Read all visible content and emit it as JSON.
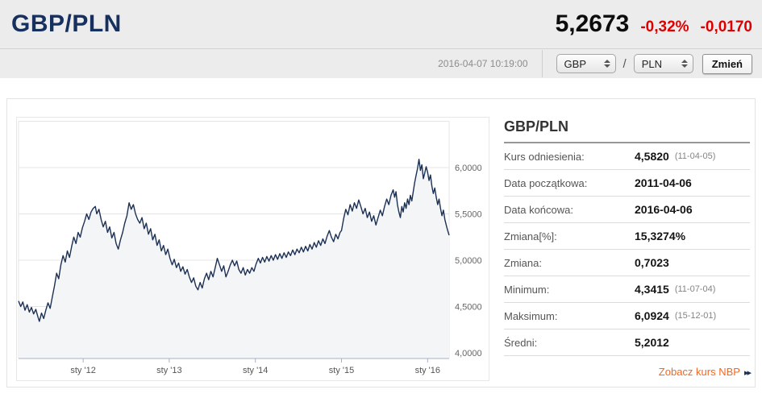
{
  "header": {
    "title": "GBP/PLN",
    "price": "5,2673",
    "change_percent": "-0,32%",
    "change_value": "-0,0170",
    "timestamp": "2016-04-07 10:19:00",
    "base_currency": "GBP",
    "quote_currency": "PLN",
    "separator": "/",
    "change_button": "Zmień"
  },
  "panel": {
    "title": "GBP/PLN",
    "rows": [
      {
        "label": "Kurs odniesienia:",
        "value": "4,5820",
        "note": "(11-04-05)"
      },
      {
        "label": "Data początkowa:",
        "value": "2011-04-06",
        "note": ""
      },
      {
        "label": "Data końcowa:",
        "value": "2016-04-06",
        "note": ""
      },
      {
        "label": "Zmiana[%]:",
        "value": "15,3274%",
        "note": ""
      },
      {
        "label": "Zmiana:",
        "value": "0,7023",
        "note": ""
      },
      {
        "label": "Minimum:",
        "value": "4,3415",
        "note": "(11-07-04)"
      },
      {
        "label": "Maksimum:",
        "value": "6,0924",
        "note": "(15-12-01)"
      },
      {
        "label": "Średni:",
        "value": "5,2012",
        "note": ""
      }
    ],
    "link": {
      "label": "Zobacz kurs NBP",
      "arrow": "▸▸"
    }
  },
  "colors": {
    "title_navy": "#16315f",
    "change_red": "#de0000",
    "link_orange": "#f26822",
    "chart_line": "#1c3054",
    "chart_area": "#f4f5f7",
    "chart_grid": "#e4e4e6",
    "chart_axis": "#a3b1cb",
    "band_gray": "#ececec"
  },
  "chart_data": {
    "type": "line",
    "title": "GBP/PLN 2011-04-06 — 2016-04-06",
    "xlabel": "",
    "ylabel": "",
    "x_unit": "months since 2011-04",
    "x_domain": [
      0,
      60
    ],
    "ylim": [
      3.93,
      6.54
    ],
    "grid_values": [
      6.5,
      6.0,
      5.5,
      5.0,
      4.5,
      4.0
    ],
    "y_ticks": [
      {
        "value": 6.0,
        "label": "6,0000"
      },
      {
        "value": 5.5,
        "label": "5,5000"
      },
      {
        "value": 5.0,
        "label": "5,0000"
      },
      {
        "value": 4.5,
        "label": "4,5000"
      },
      {
        "value": 4.0,
        "label": "4,0000"
      }
    ],
    "x_ticks": [
      {
        "value": 9,
        "label": "sty '12"
      },
      {
        "value": 21,
        "label": "sty '13"
      },
      {
        "value": 33,
        "label": "sty '14"
      },
      {
        "value": 45,
        "label": "sty '15"
      },
      {
        "value": 57,
        "label": "sty '16"
      }
    ],
    "legend": "none",
    "grid": "horizontal",
    "series": [
      {
        "name": "GBP/PLN",
        "points": [
          [
            0,
            4.56
          ],
          [
            0.3,
            4.5
          ],
          [
            0.6,
            4.55
          ],
          [
            0.9,
            4.46
          ],
          [
            1.2,
            4.52
          ],
          [
            1.5,
            4.44
          ],
          [
            1.8,
            4.49
          ],
          [
            2.1,
            4.42
          ],
          [
            2.4,
            4.47
          ],
          [
            2.7,
            4.39
          ],
          [
            2.9,
            4.34
          ],
          [
            3.2,
            4.43
          ],
          [
            3.5,
            4.37
          ],
          [
            3.8,
            4.46
          ],
          [
            4.1,
            4.54
          ],
          [
            4.4,
            4.48
          ],
          [
            4.7,
            4.6
          ],
          [
            5,
            4.72
          ],
          [
            5.3,
            4.86
          ],
          [
            5.6,
            4.8
          ],
          [
            5.9,
            4.95
          ],
          [
            6.2,
            5.05
          ],
          [
            6.5,
            4.98
          ],
          [
            6.8,
            5.1
          ],
          [
            7.1,
            5.03
          ],
          [
            7.4,
            5.15
          ],
          [
            7.7,
            5.25
          ],
          [
            8,
            5.18
          ],
          [
            8.3,
            5.3
          ],
          [
            8.6,
            5.25
          ],
          [
            8.9,
            5.35
          ],
          [
            9.2,
            5.42
          ],
          [
            9.5,
            5.5
          ],
          [
            9.8,
            5.44
          ],
          [
            10.1,
            5.52
          ],
          [
            10.4,
            5.56
          ],
          [
            10.7,
            5.58
          ],
          [
            10.9,
            5.5
          ],
          [
            11.2,
            5.55
          ],
          [
            11.5,
            5.44
          ],
          [
            11.8,
            5.36
          ],
          [
            12.1,
            5.42
          ],
          [
            12.4,
            5.3
          ],
          [
            12.7,
            5.36
          ],
          [
            13,
            5.24
          ],
          [
            13.3,
            5.3
          ],
          [
            13.6,
            5.18
          ],
          [
            13.9,
            5.12
          ],
          [
            14.2,
            5.22
          ],
          [
            14.5,
            5.3
          ],
          [
            14.8,
            5.4
          ],
          [
            15.1,
            5.48
          ],
          [
            15.4,
            5.62
          ],
          [
            15.7,
            5.55
          ],
          [
            16,
            5.6
          ],
          [
            16.3,
            5.5
          ],
          [
            16.6,
            5.44
          ],
          [
            16.9,
            5.4
          ],
          [
            17.2,
            5.46
          ],
          [
            17.5,
            5.34
          ],
          [
            17.8,
            5.4
          ],
          [
            18.1,
            5.28
          ],
          [
            18.4,
            5.34
          ],
          [
            18.7,
            5.22
          ],
          [
            19,
            5.28
          ],
          [
            19.3,
            5.16
          ],
          [
            19.6,
            5.22
          ],
          [
            19.9,
            5.1
          ],
          [
            20.2,
            5.16
          ],
          [
            20.5,
            5.06
          ],
          [
            20.8,
            5.12
          ],
          [
            21.1,
            5.02
          ],
          [
            21.4,
            4.95
          ],
          [
            21.7,
            5.01
          ],
          [
            22,
            4.92
          ],
          [
            22.3,
            4.97
          ],
          [
            22.6,
            4.88
          ],
          [
            22.9,
            4.93
          ],
          [
            23.2,
            4.85
          ],
          [
            23.5,
            4.9
          ],
          [
            23.8,
            4.82
          ],
          [
            24.1,
            4.76
          ],
          [
            24.4,
            4.81
          ],
          [
            24.7,
            4.72
          ],
          [
            25,
            4.68
          ],
          [
            25.3,
            4.76
          ],
          [
            25.6,
            4.7
          ],
          [
            25.9,
            4.8
          ],
          [
            26.2,
            4.86
          ],
          [
            26.5,
            4.79
          ],
          [
            26.8,
            4.88
          ],
          [
            27.1,
            4.82
          ],
          [
            27.4,
            4.92
          ],
          [
            27.7,
            5.02
          ],
          [
            28,
            4.95
          ],
          [
            28.3,
            4.88
          ],
          [
            28.6,
            4.94
          ],
          [
            28.9,
            4.82
          ],
          [
            29.2,
            4.88
          ],
          [
            29.5,
            4.95
          ],
          [
            29.8,
            5.0
          ],
          [
            30.1,
            4.94
          ],
          [
            30.4,
            4.99
          ],
          [
            30.7,
            4.9
          ],
          [
            31,
            4.86
          ],
          [
            31.3,
            4.92
          ],
          [
            31.6,
            4.84
          ],
          [
            31.9,
            4.9
          ],
          [
            32.2,
            4.86
          ],
          [
            32.5,
            4.92
          ],
          [
            32.8,
            4.88
          ],
          [
            33.1,
            4.96
          ],
          [
            33.4,
            5.02
          ],
          [
            33.7,
            4.97
          ],
          [
            34,
            5.03
          ],
          [
            34.3,
            4.98
          ],
          [
            34.6,
            5.04
          ],
          [
            34.9,
            4.99
          ],
          [
            35.2,
            5.05
          ],
          [
            35.5,
            5.0
          ],
          [
            35.8,
            5.06
          ],
          [
            36.1,
            5.01
          ],
          [
            36.4,
            5.07
          ],
          [
            36.7,
            5.02
          ],
          [
            37,
            5.08
          ],
          [
            37.3,
            5.03
          ],
          [
            37.6,
            5.09
          ],
          [
            37.9,
            5.05
          ],
          [
            38.2,
            5.11
          ],
          [
            38.5,
            5.06
          ],
          [
            38.8,
            5.12
          ],
          [
            39.1,
            5.08
          ],
          [
            39.4,
            5.14
          ],
          [
            39.7,
            5.09
          ],
          [
            40,
            5.15
          ],
          [
            40.3,
            5.1
          ],
          [
            40.6,
            5.17
          ],
          [
            40.9,
            5.12
          ],
          [
            41.2,
            5.19
          ],
          [
            41.5,
            5.14
          ],
          [
            41.8,
            5.21
          ],
          [
            42.1,
            5.16
          ],
          [
            42.4,
            5.23
          ],
          [
            42.7,
            5.18
          ],
          [
            43,
            5.26
          ],
          [
            43.3,
            5.32
          ],
          [
            43.6,
            5.25
          ],
          [
            43.9,
            5.2
          ],
          [
            44.2,
            5.28
          ],
          [
            44.5,
            5.23
          ],
          [
            44.8,
            5.3
          ],
          [
            45,
            5.32
          ],
          [
            45.3,
            5.45
          ],
          [
            45.6,
            5.55
          ],
          [
            45.9,
            5.49
          ],
          [
            46.2,
            5.6
          ],
          [
            46.5,
            5.53
          ],
          [
            46.8,
            5.62
          ],
          [
            47.1,
            5.56
          ],
          [
            47.4,
            5.65
          ],
          [
            47.7,
            5.58
          ],
          [
            48,
            5.5
          ],
          [
            48.3,
            5.56
          ],
          [
            48.6,
            5.46
          ],
          [
            48.9,
            5.52
          ],
          [
            49.2,
            5.42
          ],
          [
            49.5,
            5.48
          ],
          [
            49.8,
            5.38
          ],
          [
            50.1,
            5.46
          ],
          [
            50.4,
            5.54
          ],
          [
            50.7,
            5.48
          ],
          [
            51,
            5.58
          ],
          [
            51.3,
            5.66
          ],
          [
            51.6,
            5.6
          ],
          [
            51.9,
            5.7
          ],
          [
            52.2,
            5.76
          ],
          [
            52.4,
            5.68
          ],
          [
            52.6,
            5.74
          ],
          [
            52.8,
            5.6
          ],
          [
            53,
            5.52
          ],
          [
            53.2,
            5.46
          ],
          [
            53.4,
            5.58
          ],
          [
            53.6,
            5.52
          ],
          [
            53.8,
            5.62
          ],
          [
            54,
            5.56
          ],
          [
            54.2,
            5.66
          ],
          [
            54.4,
            5.6
          ],
          [
            54.6,
            5.7
          ],
          [
            54.8,
            5.64
          ],
          [
            55,
            5.74
          ],
          [
            55.2,
            5.84
          ],
          [
            55.4,
            5.92
          ],
          [
            55.6,
            5.99
          ],
          [
            55.8,
            6.09
          ],
          [
            56,
            5.97
          ],
          [
            56.2,
            6.03
          ],
          [
            56.4,
            5.88
          ],
          [
            56.6,
            5.94
          ],
          [
            56.8,
            6.01
          ],
          [
            57,
            5.95
          ],
          [
            57.2,
            5.86
          ],
          [
            57.4,
            5.92
          ],
          [
            57.6,
            5.8
          ],
          [
            57.8,
            5.72
          ],
          [
            58,
            5.78
          ],
          [
            58.2,
            5.68
          ],
          [
            58.4,
            5.6
          ],
          [
            58.6,
            5.66
          ],
          [
            58.8,
            5.56
          ],
          [
            59,
            5.48
          ],
          [
            59.2,
            5.54
          ],
          [
            59.4,
            5.44
          ],
          [
            59.6,
            5.38
          ],
          [
            59.8,
            5.32
          ],
          [
            60,
            5.27
          ]
        ]
      }
    ]
  }
}
